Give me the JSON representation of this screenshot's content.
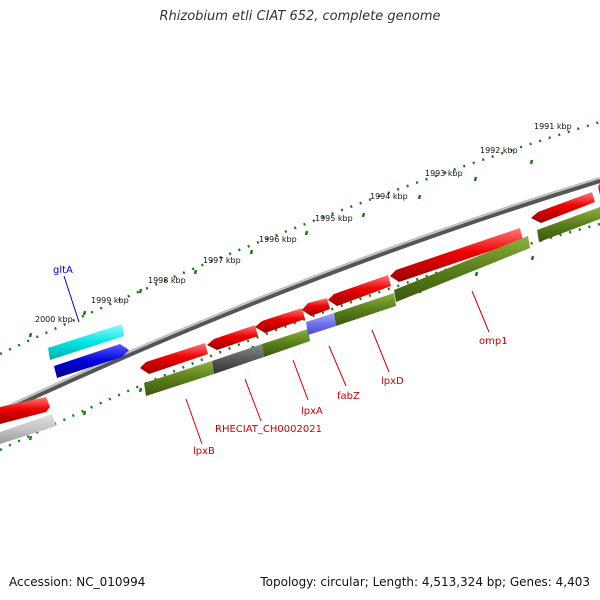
{
  "title": "Rhizobium etli CIAT 652, complete genome",
  "accession": "Accession: NC_010994",
  "summary": "Topology: circular; Length: 4,513,324 bp; Genes: 4,403",
  "scale_labels": [
    "1991 kbp",
    "1992 kbp",
    "1993 kbp",
    "1994 kbp",
    "1995 kbp",
    "1996 kbp",
    "1997 kbp",
    "1998 kbp",
    "1999 kbp",
    "2000 kbp"
  ],
  "gene_labels": [
    "gltA",
    "lpxB",
    "RHECIAT_CH0002021",
    "lpxA",
    "fabZ",
    "lpxD",
    "omp1"
  ],
  "colors": {
    "forward_gene": "#ee0000",
    "reverse_gene": "#0000dd",
    "cyan_feature": "#00e5e5",
    "olive_feature": "#5a7f1a",
    "backbone": "#7f7f7f",
    "scale_ticks": "#1a7a1a"
  }
}
